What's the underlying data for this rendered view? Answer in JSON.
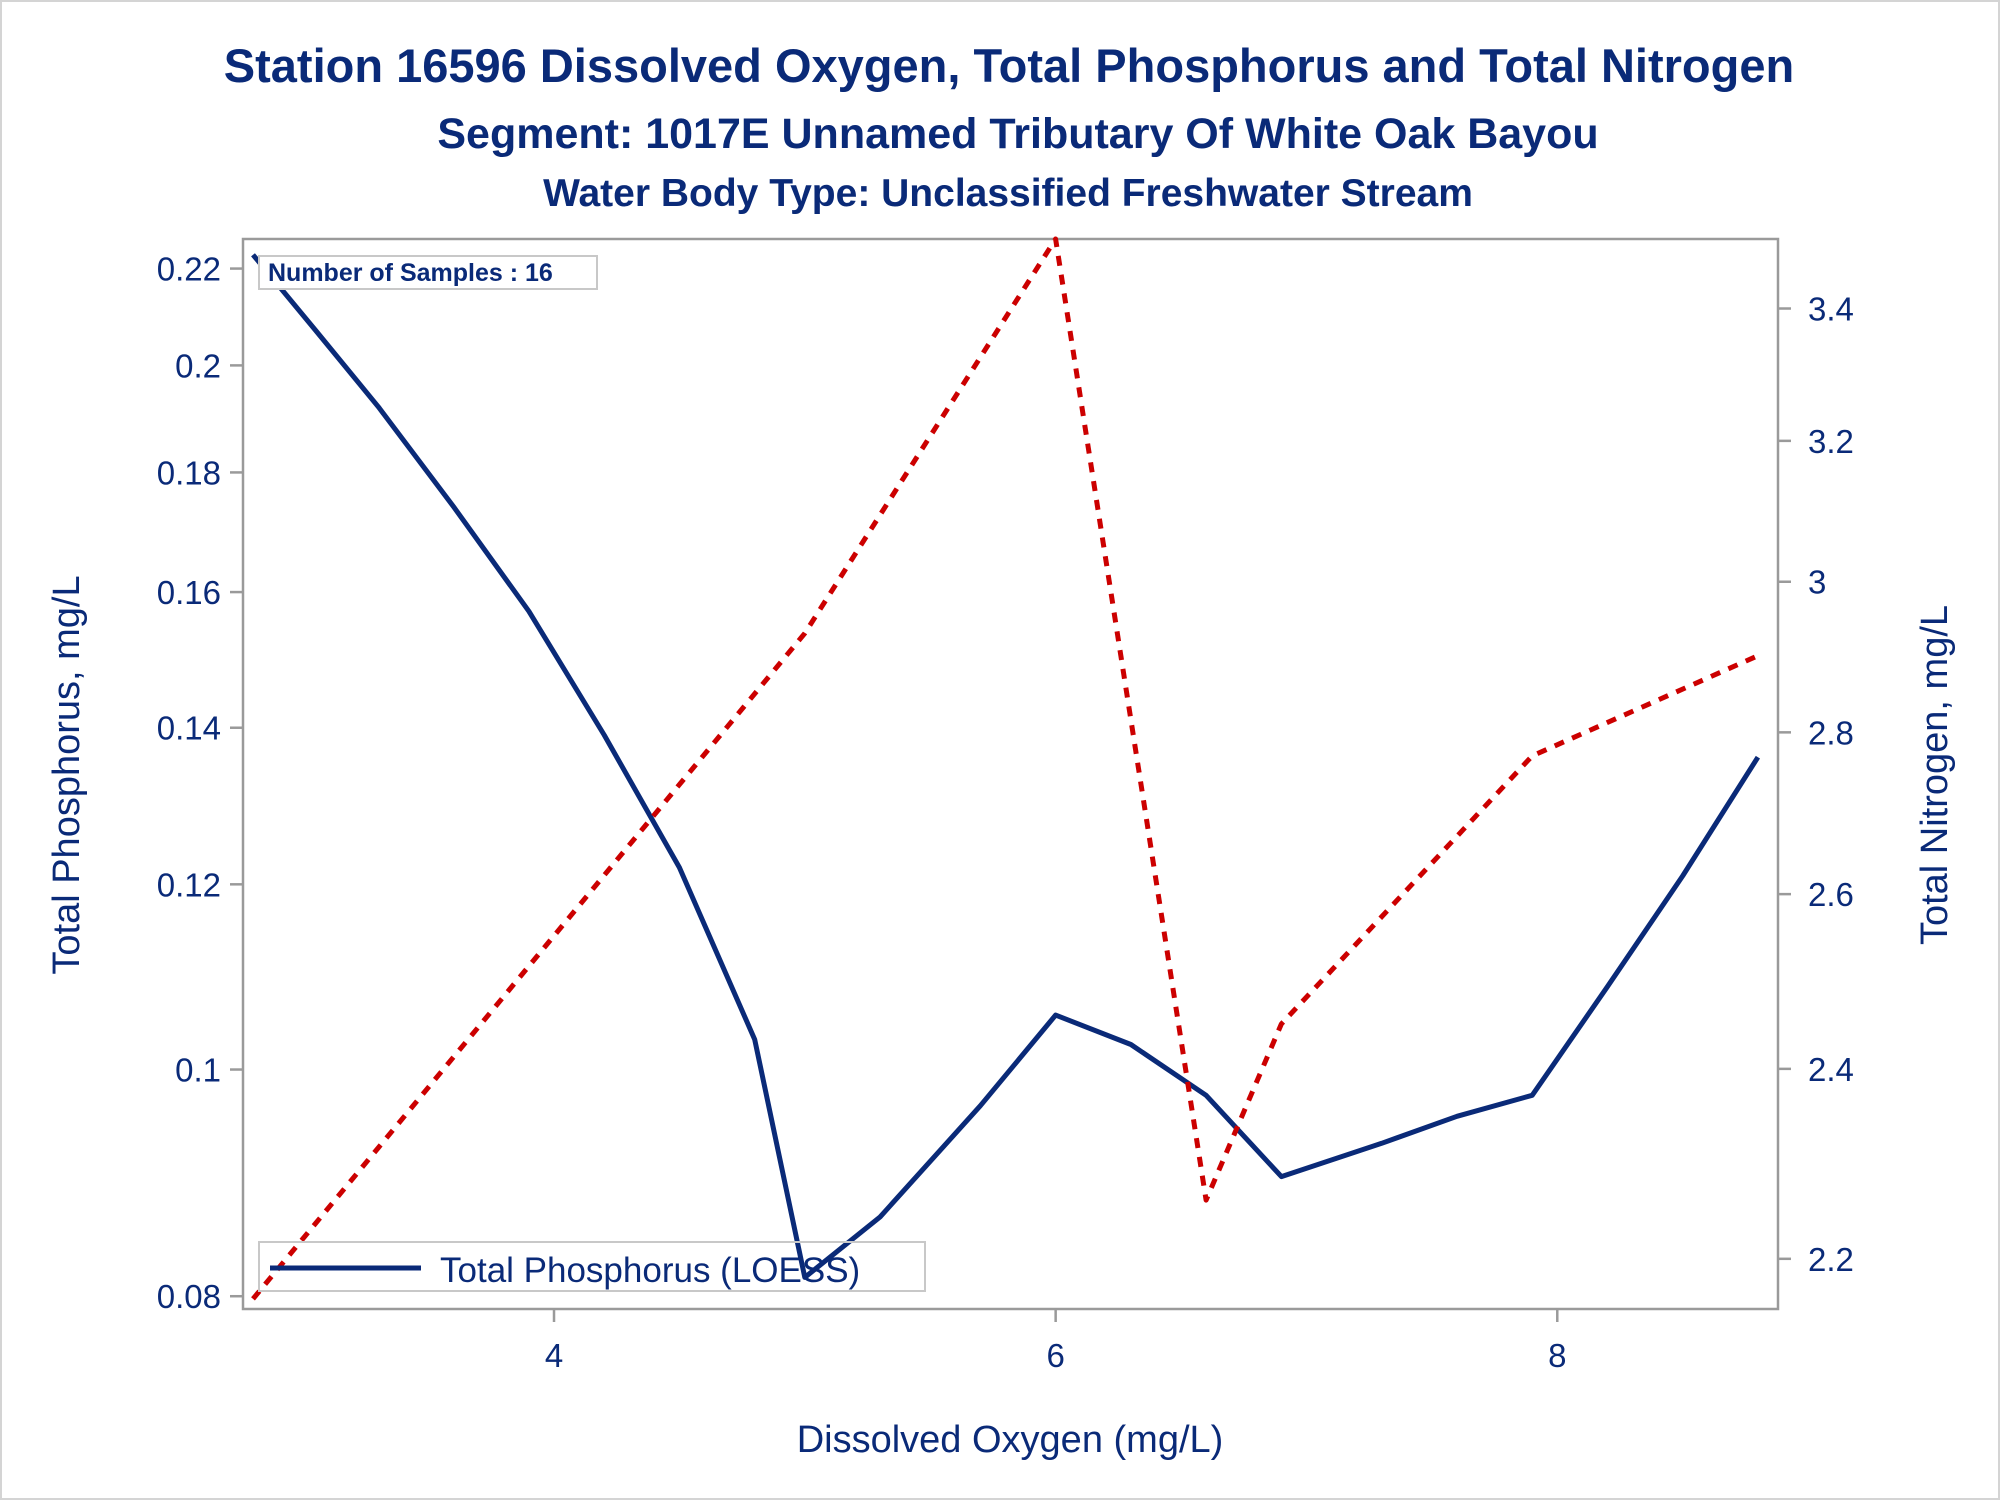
{
  "chart_data": {
    "type": "line",
    "title": "Station 16596  Dissolved Oxygen, Total Phosphorus and Total Nitrogen",
    "subtitle": "Segment: 1017E  Unnamed Tributary Of White Oak Bayou",
    "subtitle2": "Water Body Type: Unclassified Freshwater Stream",
    "xlabel": "Dissolved Oxygen (mg/L)",
    "ylabel_left": "Total Phosphorus, mg/L",
    "ylabel_right": "Total Nitrogen, mg/L",
    "xlim": [
      2.76,
      8.88
    ],
    "ylim_left": [
      0.079,
      0.2265
    ],
    "ylim_right": [
      2.15,
      3.51
    ],
    "y_left_scale": "log",
    "y_right_scale": "log",
    "x_ticks": [
      {
        "value": 4,
        "label": "4"
      },
      {
        "value": 6,
        "label": "6"
      },
      {
        "value": 8,
        "label": "8"
      }
    ],
    "y_left_ticks": [
      {
        "value": 0.08,
        "label": "0.08"
      },
      {
        "value": 0.1,
        "label": "0.1"
      },
      {
        "value": 0.12,
        "label": "0.12"
      },
      {
        "value": 0.14,
        "label": "0.14"
      },
      {
        "value": 0.16,
        "label": "0.16"
      },
      {
        "value": 0.18,
        "label": "0.18"
      },
      {
        "value": 0.2,
        "label": "0.2"
      },
      {
        "value": 0.22,
        "label": "0.22"
      }
    ],
    "y_right_ticks": [
      {
        "value": 2.2,
        "label": "2.2"
      },
      {
        "value": 2.4,
        "label": "2.4"
      },
      {
        "value": 2.6,
        "label": "2.6"
      },
      {
        "value": 2.8,
        "label": "2.8"
      },
      {
        "value": 3.0,
        "label": "3"
      },
      {
        "value": 3.2,
        "label": "3.2"
      },
      {
        "value": 3.4,
        "label": "3.4"
      }
    ],
    "inset_label": "Number of Samples : 16",
    "legend": {
      "position": "bottom-left",
      "entries": [
        "Total Phosphorus (LOESS)"
      ]
    },
    "series": [
      {
        "name": "Total Phosphorus (LOESS)",
        "axis": "left",
        "color": "#0a2a78",
        "style": "solid",
        "x": [
          2.8,
          3.05,
          3.3,
          3.6,
          3.9,
          4.2,
          4.5,
          4.8,
          5.0,
          5.3,
          5.7,
          6.0,
          6.3,
          6.6,
          6.9,
          7.3,
          7.6,
          7.9,
          8.2,
          8.5,
          8.8
        ],
        "y": [
          0.223,
          0.207,
          0.192,
          0.174,
          0.157,
          0.139,
          0.122,
          0.103,
          0.0815,
          0.0865,
          0.0965,
          0.1055,
          0.1025,
          0.0975,
          0.09,
          0.093,
          0.0955,
          0.0975,
          0.1085,
          0.121,
          0.136
        ]
      },
      {
        "name": "Total Nitrogen",
        "axis": "right",
        "color": "#cc0000",
        "style": "dashed",
        "x": [
          2.8,
          5.0,
          6.0,
          6.6,
          6.9,
          7.9,
          8.8
        ],
        "y": [
          2.16,
          2.93,
          3.51,
          2.26,
          2.45,
          2.77,
          2.9
        ]
      }
    ]
  }
}
